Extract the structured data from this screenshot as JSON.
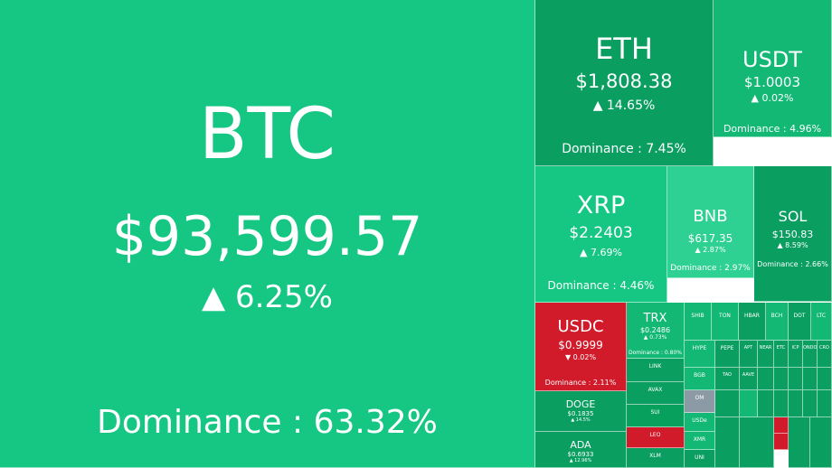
{
  "colors": {
    "up_strong": "#12b874",
    "up_mid": "#16c784",
    "up_light": "#2ed191",
    "up_dark": "#0a9e61",
    "up_deep": "#07a05c",
    "down": "#d11a2a",
    "neutral": "#8c9aa5"
  },
  "chart_data": {
    "type": "treemap",
    "title": "",
    "unit": "market dominance %",
    "tiles": [
      {
        "symbol": "BTC",
        "price": "$93,599.57",
        "change": "▲ 6.25%",
        "dominance": "Dominance : 63.32%",
        "dominance_pct": 63.32,
        "color": "up_mid"
      },
      {
        "symbol": "ETH",
        "price": "$1,808.38",
        "change": "▲ 14.65%",
        "dominance": "Dominance : 7.45%",
        "dominance_pct": 7.45,
        "color": "up_dark"
      },
      {
        "symbol": "USDT",
        "price": "$1.0003",
        "change": "▲ 0.02%",
        "dominance": "Dominance : 4.96%",
        "dominance_pct": 4.96,
        "color": "up_strong"
      },
      {
        "symbol": "XRP",
        "price": "$2.2403",
        "change": "▲ 7.69%",
        "dominance": "Dominance : 4.46%",
        "dominance_pct": 4.46,
        "color": "up_mid"
      },
      {
        "symbol": "BNB",
        "price": "$617.35",
        "change": "▲ 2.87%",
        "dominance": "Dominance : 2.97%",
        "dominance_pct": 2.97,
        "color": "up_light"
      },
      {
        "symbol": "SOL",
        "price": "$150.83",
        "change": "▲ 8.59%",
        "dominance": "Dominance : 2.66%",
        "dominance_pct": 2.66,
        "color": "up_dark"
      },
      {
        "symbol": "USDC",
        "price": "$0.9999",
        "change": "▼ 0.02%",
        "dominance": "Dominance : 2.11%",
        "dominance_pct": 2.11,
        "color": "down"
      },
      {
        "symbol": "TRX",
        "price": "$0.2486",
        "change": "▲ 0.73%",
        "dominance": "Dominance : 0.80%",
        "dominance_pct": 0.8,
        "color": "up_strong"
      },
      {
        "symbol": "DOGE",
        "price": "$0.1835",
        "change": "▲ 14.5%",
        "dominance": "",
        "color": "up_dark"
      },
      {
        "symbol": "ADA",
        "price": "$0.6933",
        "change": "▲ 12.96%",
        "dominance": "",
        "color": "up_dark"
      },
      {
        "symbol": "LINK",
        "price": "",
        "change": "",
        "dominance": "",
        "color": "up_dark"
      },
      {
        "symbol": "AVAX",
        "price": "",
        "change": "",
        "dominance": "",
        "color": "up_dark"
      },
      {
        "symbol": "SUI",
        "price": "",
        "change": "",
        "dominance": "",
        "color": "up_deep"
      },
      {
        "symbol": "LEO",
        "price": "",
        "change": "",
        "dominance": "",
        "color": "down"
      },
      {
        "symbol": "XLM",
        "price": "",
        "change": "",
        "dominance": "",
        "color": "up_dark"
      },
      {
        "symbol": "SHIB",
        "price": "",
        "change": "",
        "dominance": "",
        "color": "up_strong"
      },
      {
        "symbol": "TON",
        "price": "",
        "change": "",
        "dominance": "",
        "color": "up_strong"
      },
      {
        "symbol": "HBAR",
        "price": "",
        "change": "",
        "dominance": "",
        "color": "up_dark"
      },
      {
        "symbol": "BCH",
        "price": "",
        "change": "",
        "dominance": "",
        "color": "up_strong"
      },
      {
        "symbol": "DOT",
        "price": "",
        "change": "",
        "dominance": "",
        "color": "up_dark"
      },
      {
        "symbol": "LTC",
        "price": "",
        "change": "",
        "dominance": "",
        "color": "up_strong"
      },
      {
        "symbol": "HYPE",
        "price": "",
        "change": "",
        "dominance": "",
        "color": "up_strong"
      },
      {
        "symbol": "PEPE",
        "price": "",
        "change": "",
        "dominance": "",
        "color": "up_dark"
      },
      {
        "symbol": "BGB",
        "price": "",
        "change": "",
        "dominance": "",
        "color": "up_strong"
      },
      {
        "symbol": "OM",
        "price": "",
        "change": "",
        "dominance": "",
        "color": "neutral"
      },
      {
        "symbol": "USDe",
        "price": "",
        "change": "",
        "dominance": "",
        "color": "up_strong"
      },
      {
        "symbol": "XMR",
        "price": "",
        "change": "",
        "dominance": "",
        "color": "up_strong"
      },
      {
        "symbol": "UNI",
        "price": "",
        "change": "",
        "dominance": "",
        "color": "up_dark"
      },
      {
        "symbol": "APT",
        "price": "",
        "change": "",
        "dominance": "",
        "color": "up_dark"
      },
      {
        "symbol": "NEAR",
        "price": "",
        "change": "",
        "dominance": "",
        "color": "up_dark"
      },
      {
        "symbol": "ETC",
        "price": "",
        "change": "",
        "dominance": "",
        "color": "up_dark"
      },
      {
        "symbol": "ICP",
        "price": "",
        "change": "",
        "dominance": "",
        "color": "up_dark"
      },
      {
        "symbol": "ONDO",
        "price": "",
        "change": "",
        "dominance": "",
        "color": "up_dark"
      },
      {
        "symbol": "CRO",
        "price": "",
        "change": "",
        "dominance": "",
        "color": "up_dark"
      },
      {
        "symbol": "TAO",
        "price": "",
        "change": "",
        "dominance": "",
        "color": "up_dark"
      },
      {
        "symbol": "AAVE",
        "price": "",
        "change": "",
        "dominance": "",
        "color": "up_dark"
      },
      {
        "symbol": "",
        "price": "",
        "change": "",
        "dominance": "",
        "color": "up_dark"
      },
      {
        "symbol": "",
        "price": "",
        "change": "",
        "dominance": "",
        "color": "up_dark"
      },
      {
        "symbol": "",
        "price": "",
        "change": "",
        "dominance": "",
        "color": "up_dark"
      },
      {
        "symbol": "",
        "price": "",
        "change": "",
        "dominance": "",
        "color": "up_dark"
      },
      {
        "symbol": "",
        "price": "",
        "change": "",
        "dominance": "",
        "color": "up_dark"
      },
      {
        "symbol": "",
        "price": "",
        "change": "",
        "dominance": "",
        "color": "up_dark"
      },
      {
        "symbol": "",
        "price": "",
        "change": "",
        "dominance": "",
        "color": "up_strong"
      },
      {
        "symbol": "",
        "price": "",
        "change": "",
        "dominance": "",
        "color": "up_dark"
      },
      {
        "symbol": "",
        "price": "",
        "change": "",
        "dominance": "",
        "color": "up_dark"
      },
      {
        "symbol": "",
        "price": "",
        "change": "",
        "dominance": "",
        "color": "down"
      },
      {
        "symbol": "",
        "price": "",
        "change": "",
        "dominance": "",
        "color": "up_dark"
      },
      {
        "symbol": "",
        "price": "",
        "change": "",
        "dominance": "",
        "color": "up_dark"
      },
      {
        "symbol": "",
        "price": "",
        "change": "",
        "dominance": "",
        "color": "down"
      },
      {
        "symbol": "",
        "price": "",
        "change": "",
        "dominance": "",
        "color": "up_dark"
      },
      {
        "symbol": "",
        "price": "",
        "change": "",
        "dominance": "",
        "color": "up_dark"
      },
      {
        "symbol": "",
        "price": "",
        "change": "",
        "dominance": "",
        "color": "up_dark"
      },
      {
        "symbol": "",
        "price": "",
        "change": "",
        "dominance": "",
        "color": "up_dark"
      },
      {
        "symbol": "",
        "price": "",
        "change": "",
        "dominance": "",
        "color": "up_dark"
      }
    ]
  }
}
